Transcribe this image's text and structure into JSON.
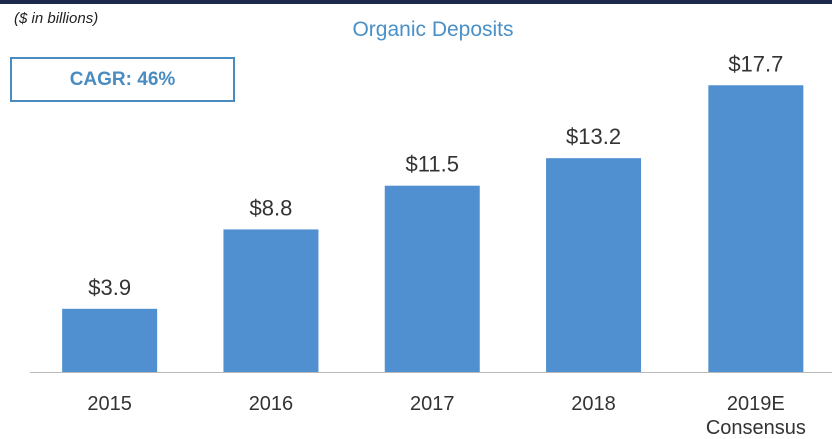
{
  "chart_data": {
    "type": "bar",
    "title": "Organic Deposits",
    "subtitle": "($ in billions)",
    "annotation": "CAGR: 46%",
    "categories": [
      "2015",
      "2016",
      "2017",
      "2018",
      "2019E Consensus"
    ],
    "values": [
      3.9,
      8.8,
      11.5,
      13.2,
      17.7
    ],
    "value_labels": [
      "$3.9",
      "$8.8",
      "$11.5",
      "$13.2",
      "$17.7"
    ],
    "color": "#5090d0"
  }
}
